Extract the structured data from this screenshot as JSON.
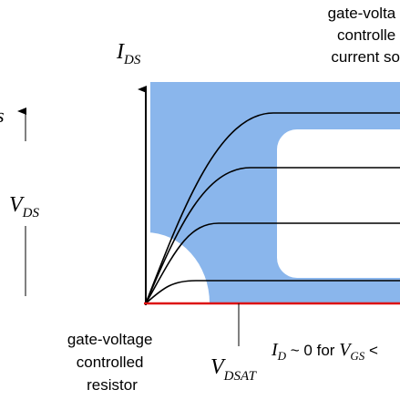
{
  "top_right_label": [
    "gate-volta",
    "controlle",
    "current so"
  ],
  "y_axis_label": {
    "main": "I",
    "sub": "DS"
  },
  "left_fragment": "s",
  "left_label": {
    "main": "V",
    "sub": "DS"
  },
  "bottom_left_label": [
    "gate-voltage",
    "controlled",
    "resistor"
  ],
  "x_marker_label": {
    "main": "V",
    "sub": "DSAT"
  },
  "cutoff_label": {
    "part1": "I",
    "sub1": "D",
    "part2": " ~ 0 for ",
    "part3": "V",
    "sub3": "GS",
    "part4": " <"
  }
}
